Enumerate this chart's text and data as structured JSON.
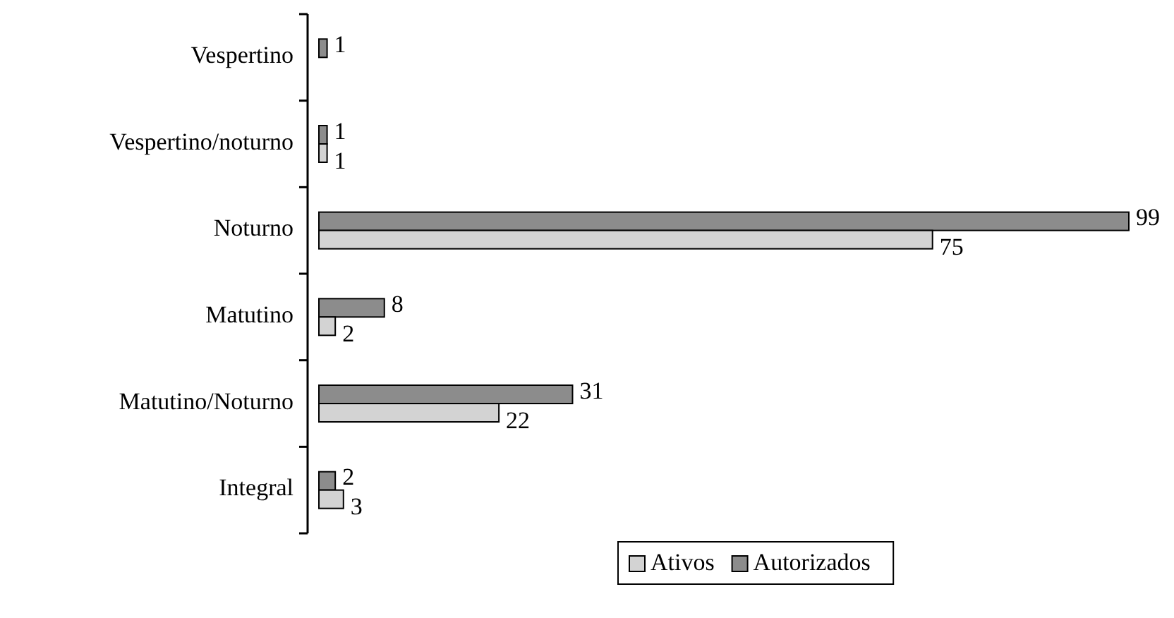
{
  "chart_data": {
    "type": "bar",
    "orientation": "horizontal",
    "categories": [
      "Vespertino",
      "Vespertino/noturno",
      "Noturno",
      "Matutino",
      "Matutino/Noturno",
      "Integral"
    ],
    "series": [
      {
        "name": "Ativos",
        "color": "#d3d3d3",
        "values": [
          null,
          1,
          75,
          2,
          22,
          3
        ]
      },
      {
        "name": "Autorizados",
        "color": "#8c8c8c",
        "values": [
          1,
          1,
          99,
          8,
          31,
          2
        ]
      }
    ],
    "data_labels": true,
    "legend": "bottom"
  }
}
